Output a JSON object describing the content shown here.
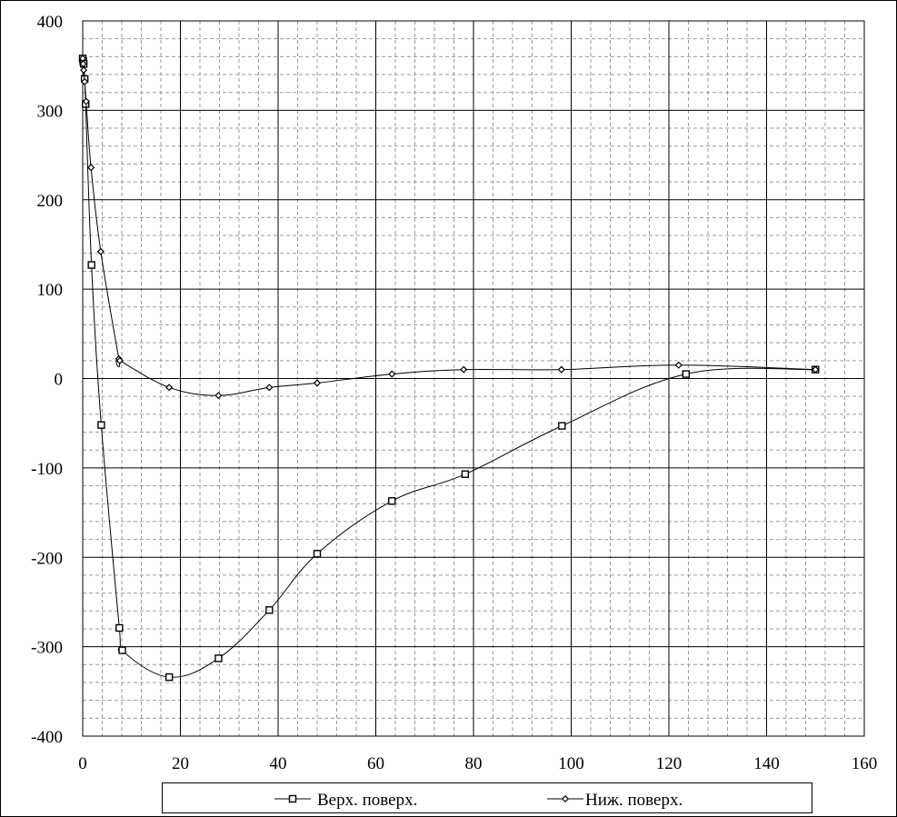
{
  "chart_data": {
    "type": "line",
    "title": "",
    "xlabel": "",
    "ylabel": "",
    "xlim": [
      0,
      160
    ],
    "ylim": [
      -400,
      400
    ],
    "x_ticks": [
      "0",
      "20",
      "40",
      "60",
      "80",
      "100",
      "120",
      "140",
      "160"
    ],
    "y_ticks": [
      "400",
      "300",
      "200",
      "100",
      "0",
      "-100",
      "-200",
      "-300",
      "-400"
    ],
    "grid": "major and minor",
    "legend_position": "bottom",
    "series": [
      {
        "name": "Верх. поверх.",
        "marker": "square",
        "x": [
          0,
          0.1,
          0.2,
          0.4,
          0.6,
          1.8,
          3.8,
          7.5,
          8.1,
          17.7,
          27.8,
          38.2,
          48.0,
          63.3,
          78.3,
          98.1,
          123.5,
          150.0
        ],
        "y": [
          358,
          355,
          352,
          335,
          307,
          127,
          -52,
          -279,
          -304,
          -334,
          -313,
          -259,
          -196,
          -137,
          -107,
          -53,
          5,
          10
        ]
      },
      {
        "name": "Ниж. поверх.",
        "marker": "diamond",
        "x": [
          0,
          0.1,
          0.2,
          0.4,
          0.7,
          1.7,
          3.7,
          7.4,
          7.6,
          17.7,
          27.8,
          38.2,
          48.0,
          63.3,
          78.0,
          98.0,
          122.0,
          150.0
        ],
        "y": [
          358,
          352,
          345,
          332,
          310,
          236,
          142,
          22,
          20,
          -10,
          -19,
          -10,
          -5,
          5,
          10,
          10,
          15,
          10
        ]
      }
    ]
  }
}
